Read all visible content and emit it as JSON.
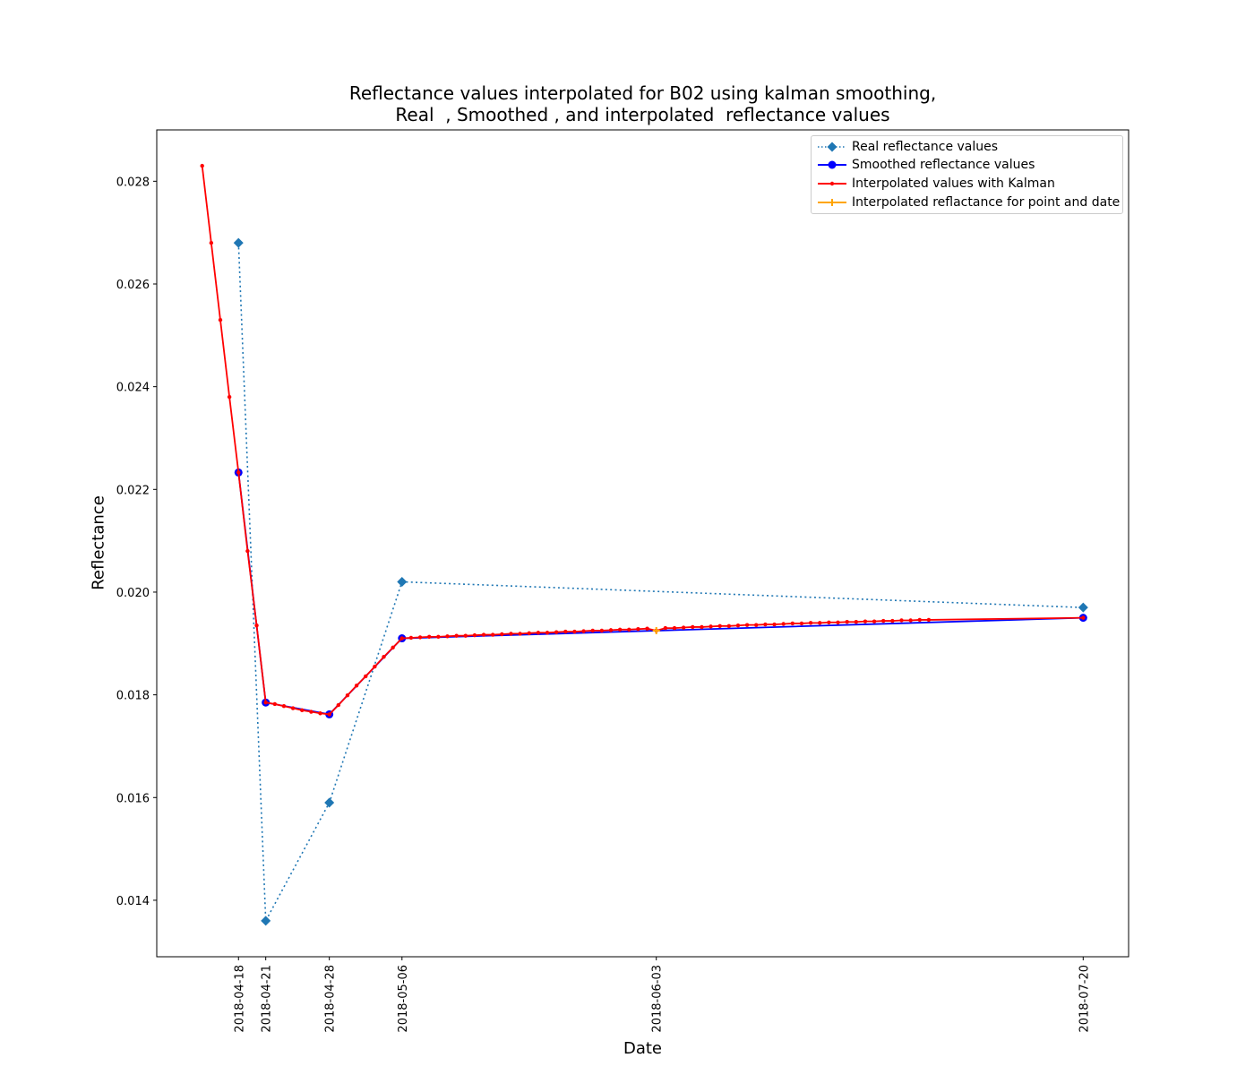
{
  "chart_data": {
    "type": "line",
    "title_line1": "Reflectance values interpolated for B02 using kalman smoothing,",
    "title_line2": "Real  , Smoothed , and interpolated  reflectance values",
    "xlabel": "Date",
    "ylabel": "Reflectance",
    "x_tick_labels": [
      "2018-04-18",
      "2018-04-21",
      "2018-04-28",
      "2018-05-06",
      "2018-06-03",
      "2018-07-20"
    ],
    "y_ticks": [
      0.014,
      0.016,
      0.018,
      0.02,
      0.022,
      0.024,
      0.026,
      0.028
    ],
    "xlim": [
      "2018-04-09",
      "2018-07-25"
    ],
    "ylim": [
      0.0129,
      0.029
    ],
    "grid": false,
    "legend_placement": "top-right",
    "series": [
      {
        "name": "Real reflectance values",
        "color": "#1f77b4",
        "style": "dotted line, diamond markers",
        "x": [
          "2018-04-18",
          "2018-04-21",
          "2018-04-28",
          "2018-05-06",
          "2018-07-20"
        ],
        "y": [
          0.0268,
          0.0136,
          0.0159,
          0.0202,
          0.0197
        ]
      },
      {
        "name": "Smoothed reflectance values",
        "color": "#0000ff",
        "style": "solid line, circle markers",
        "x": [
          "2018-04-18",
          "2018-04-21",
          "2018-04-28",
          "2018-05-06",
          "2018-07-20"
        ],
        "y": [
          0.02233,
          0.01785,
          0.01762,
          0.0191,
          0.0195
        ]
      },
      {
        "name": "Interpolated values with Kalman",
        "color": "#ff0000",
        "style": "solid line, small dot markers",
        "x": [
          "2018-04-14",
          "2018-04-15",
          "2018-04-16",
          "2018-04-17",
          "2018-04-18",
          "2018-04-19",
          "2018-04-20",
          "2018-04-21",
          "2018-04-22",
          "2018-04-23",
          "2018-04-24",
          "2018-04-25",
          "2018-04-26",
          "2018-04-27",
          "2018-04-28",
          "2018-04-29",
          "2018-04-30",
          "2018-05-01",
          "2018-05-02",
          "2018-05-03",
          "2018-05-04",
          "2018-05-05",
          "2018-05-06",
          "2018-05-07",
          "2018-05-08",
          "2018-05-09",
          "2018-05-10",
          "2018-05-11",
          "2018-05-12",
          "2018-05-13",
          "2018-05-14",
          "2018-05-15",
          "2018-05-16",
          "2018-05-17",
          "2018-05-18",
          "2018-05-19",
          "2018-05-20",
          "2018-05-21",
          "2018-05-22",
          "2018-05-23",
          "2018-05-24",
          "2018-05-25",
          "2018-05-26",
          "2018-05-27",
          "2018-05-28",
          "2018-05-29",
          "2018-05-30",
          "2018-05-31",
          "2018-06-01",
          "2018-06-02",
          "2018-06-03",
          "2018-06-04",
          "2018-06-05",
          "2018-06-06",
          "2018-06-07",
          "2018-06-08",
          "2018-06-09",
          "2018-06-10",
          "2018-06-11",
          "2018-06-12",
          "2018-06-13",
          "2018-06-14",
          "2018-06-15",
          "2018-06-16",
          "2018-06-17",
          "2018-06-18",
          "2018-06-19",
          "2018-06-20",
          "2018-06-21",
          "2018-06-22",
          "2018-06-23",
          "2018-06-24",
          "2018-06-25",
          "2018-06-26",
          "2018-06-27",
          "2018-06-28",
          "2018-06-29",
          "2018-06-30",
          "2018-07-01",
          "2018-07-02",
          "2018-07-03",
          "2018-07-20"
        ],
        "y": [
          0.0283,
          0.0268,
          0.0253,
          0.0238,
          0.02233,
          0.0208,
          0.01935,
          0.01785,
          0.01782,
          0.01778,
          0.01774,
          0.0177,
          0.01767,
          0.01764,
          0.01762,
          0.0178,
          0.01799,
          0.01818,
          0.01836,
          0.01855,
          0.01874,
          0.01892,
          0.0191,
          0.01911,
          0.01912,
          0.01913,
          0.01913,
          0.01914,
          0.01915,
          0.01915,
          0.01916,
          0.01917,
          0.01917,
          0.01918,
          0.01919,
          0.01919,
          0.0192,
          0.01921,
          0.01921,
          0.01922,
          0.01923,
          0.01923,
          0.01924,
          0.01925,
          0.01925,
          0.01926,
          0.01927,
          0.01927,
          0.01928,
          0.01929,
          0.01925,
          0.0193,
          0.0193,
          0.01931,
          0.01932,
          0.01932,
          0.01933,
          0.01934,
          0.01934,
          0.01935,
          0.01936,
          0.01936,
          0.01937,
          0.01937,
          0.01938,
          0.01939,
          0.01939,
          0.0194,
          0.0194,
          0.01941,
          0.01941,
          0.01942,
          0.01942,
          0.01943,
          0.01943,
          0.01944,
          0.01944,
          0.01945,
          0.01945,
          0.01946,
          0.01946,
          0.0195
        ]
      },
      {
        "name": "Interpolated reflactance for point and date",
        "color": "#ffa500",
        "style": "plus marker",
        "x": [
          "2018-06-03"
        ],
        "y": [
          0.01925
        ]
      }
    ]
  }
}
